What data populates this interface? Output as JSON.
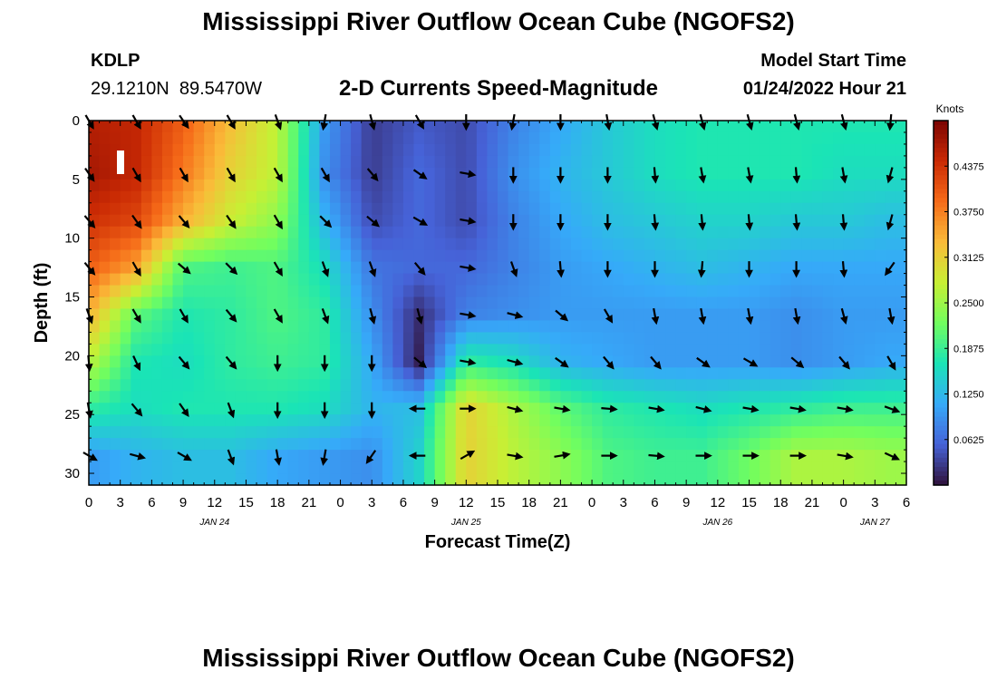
{
  "title": "Mississippi River Outflow Ocean Cube (NGOFS2)",
  "title_repeat": "Mississippi River Outflow Ocean Cube (NGOFS2)",
  "station": {
    "id": "KDLP",
    "location": "29.1210N  89.5470W"
  },
  "model_start": {
    "label": "Model Start Time",
    "value": "01/24/2022 Hour 21"
  },
  "chart_data": {
    "type": "heatmap",
    "title": "2-D Currents Speed-Magnitude",
    "xlabel": "Forecast Time(Z)",
    "ylabel": "Depth (ft)",
    "xlim": [
      0,
      78
    ],
    "ylim": [
      31,
      0
    ],
    "x_ticks": [
      0,
      3,
      6,
      9,
      12,
      15,
      18,
      21,
      24,
      27,
      30,
      33,
      36,
      39,
      42,
      45,
      48,
      51,
      54,
      57,
      60,
      63,
      66,
      69,
      72,
      75,
      78
    ],
    "x_tick_labels": [
      "0",
      "3",
      "6",
      "9",
      "12",
      "15",
      "18",
      "21",
      "0",
      "3",
      "6",
      "9",
      "12",
      "15",
      "18",
      "21",
      "0",
      "3",
      "6",
      "9",
      "12",
      "15",
      "18",
      "21",
      "0",
      "3",
      "6"
    ],
    "date_labels": [
      {
        "x": 12,
        "label": "JAN 24"
      },
      {
        "x": 36,
        "label": "JAN 25"
      },
      {
        "x": 60,
        "label": "JAN 26"
      },
      {
        "x": 75,
        "label": "JAN 27"
      }
    ],
    "y_ticks": [
      0,
      5,
      10,
      15,
      20,
      25,
      30
    ],
    "y_tick_labels": [
      "0",
      "5",
      "10",
      "15",
      "20",
      "25",
      "30"
    ],
    "colorbar": {
      "unit": "Knots",
      "range": [
        0,
        0.5
      ],
      "ticks": [
        0.0625,
        0.125,
        0.1875,
        0.25,
        0.3125,
        0.375,
        0.4375
      ],
      "tick_labels": [
        "0.0625",
        "0.1250",
        "0.1875",
        "0.2500",
        "0.3125",
        "0.3750",
        "0.4375"
      ],
      "colormap": [
        "#30123b",
        "#4662d7",
        "#36aaf9",
        "#1ae4b6",
        "#72fe5e",
        "#c8ef34",
        "#fabb39",
        "#f66b19",
        "#ca2a04",
        "#7a0403"
      ]
    },
    "grid": false,
    "depths": [
      0,
      4.5,
      8.5,
      12.5,
      16.5,
      20.5,
      24.5,
      28.5
    ],
    "times": [
      0,
      4.5,
      9,
      13.5,
      18,
      22.5,
      27,
      31.5,
      36,
      40.5,
      45,
      49.5,
      54,
      58.5,
      63,
      67.5,
      72,
      76.5
    ],
    "speed": [
      [
        0.46,
        0.45,
        0.4,
        0.33,
        0.27,
        0.1,
        0.03,
        0.05,
        0.04,
        0.08,
        0.11,
        0.14,
        0.16,
        0.17,
        0.17,
        0.17,
        0.17,
        0.17
      ],
      [
        0.47,
        0.45,
        0.38,
        0.31,
        0.27,
        0.09,
        0.03,
        0.06,
        0.04,
        0.09,
        0.12,
        0.14,
        0.16,
        0.17,
        0.17,
        0.17,
        0.16,
        0.16
      ],
      [
        0.44,
        0.42,
        0.34,
        0.28,
        0.24,
        0.12,
        0.04,
        0.06,
        0.04,
        0.08,
        0.11,
        0.13,
        0.14,
        0.15,
        0.15,
        0.14,
        0.14,
        0.13
      ],
      [
        0.4,
        0.35,
        0.2,
        0.19,
        0.2,
        0.16,
        0.07,
        0.06,
        0.06,
        0.08,
        0.1,
        0.11,
        0.12,
        0.13,
        0.12,
        0.11,
        0.11,
        0.11
      ],
      [
        0.34,
        0.21,
        0.17,
        0.18,
        0.2,
        0.18,
        0.09,
        0.02,
        0.08,
        0.09,
        0.1,
        0.1,
        0.1,
        0.1,
        0.1,
        0.09,
        0.1,
        0.1
      ],
      [
        0.27,
        0.17,
        0.16,
        0.18,
        0.19,
        0.18,
        0.11,
        0.01,
        0.18,
        0.16,
        0.12,
        0.11,
        0.1,
        0.1,
        0.1,
        0.09,
        0.1,
        0.11
      ],
      [
        0.18,
        0.16,
        0.17,
        0.17,
        0.17,
        0.16,
        0.12,
        0.13,
        0.31,
        0.26,
        0.21,
        0.18,
        0.17,
        0.16,
        0.17,
        0.18,
        0.19,
        0.19
      ],
      [
        0.1,
        0.12,
        0.13,
        0.13,
        0.11,
        0.1,
        0.09,
        0.15,
        0.31,
        0.27,
        0.24,
        0.2,
        0.19,
        0.19,
        0.22,
        0.26,
        0.26,
        0.25
      ]
    ],
    "direction_deg": [
      [
        150,
        150,
        145,
        150,
        160,
        190,
        165,
        150,
        180,
        190,
        180,
        170,
        165,
        165,
        165,
        165,
        165,
        185
      ],
      [
        145,
        150,
        150,
        150,
        150,
        150,
        140,
        125,
        100,
        180,
        180,
        180,
        175,
        170,
        170,
        175,
        170,
        195
      ],
      [
        140,
        145,
        140,
        145,
        150,
        135,
        130,
        120,
        100,
        180,
        180,
        180,
        175,
        175,
        175,
        175,
        175,
        195
      ],
      [
        140,
        150,
        130,
        135,
        150,
        160,
        160,
        140,
        100,
        160,
        175,
        180,
        180,
        185,
        180,
        180,
        175,
        215
      ],
      [
        160,
        150,
        150,
        140,
        150,
        160,
        165,
        165,
        100,
        105,
        130,
        150,
        170,
        170,
        170,
        170,
        165,
        170
      ],
      [
        175,
        155,
        140,
        140,
        180,
        180,
        180,
        130,
        100,
        105,
        125,
        140,
        140,
        125,
        120,
        130,
        140,
        150
      ],
      [
        170,
        140,
        145,
        160,
        180,
        180,
        180,
        270,
        90,
        105,
        100,
        95,
        100,
        105,
        100,
        100,
        100,
        110
      ],
      [
        120,
        105,
        120,
        160,
        170,
        190,
        215,
        270,
        60,
        100,
        80,
        90,
        95,
        90,
        90,
        90,
        100,
        115
      ]
    ]
  }
}
